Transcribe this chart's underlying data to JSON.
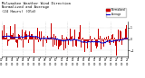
{
  "title": "Milwaukee Weather Wind Direction\nNormalized and Average\n(24 Hours) (Old)",
  "n_points": 288,
  "y_min": -1.5,
  "y_max": 1.5,
  "y_ticks": [
    -1,
    0,
    1
  ],
  "bar_color": "#cc0000",
  "line_color": "#0000cc",
  "background_color": "#ffffff",
  "grid_color": "#bbbbbb",
  "tick_label_color": "#000000",
  "title_color": "#000000",
  "title_fontsize": 2.8,
  "tick_fontsize": 2.2,
  "legend_labels": [
    "Normalized",
    "Average"
  ],
  "legend_colors": [
    "#cc0000",
    "#0000cc"
  ],
  "n_xticks": 24,
  "seed": 42
}
